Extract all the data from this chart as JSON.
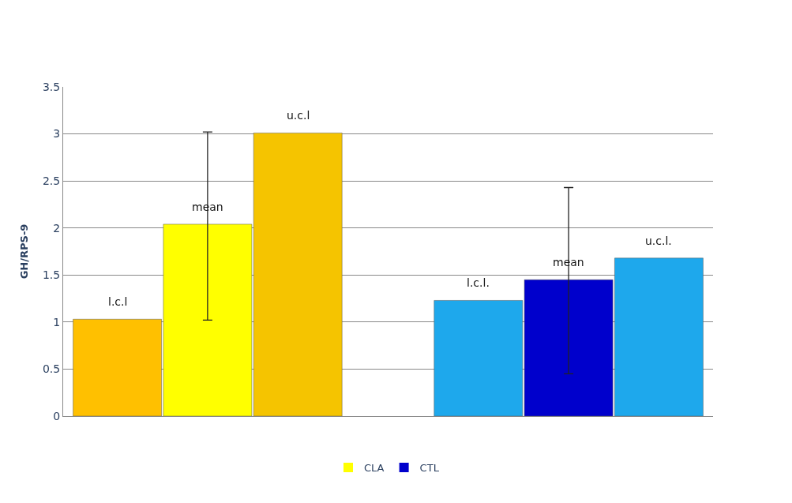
{
  "chart_data": {
    "type": "bar",
    "ylabel": "GH/RPS-9",
    "categories": [
      null,
      null,
      null,
      null,
      null,
      null
    ],
    "series": [
      {
        "name": "CLA",
        "color": "#ffff00",
        "colors": [
          "#ffc000",
          "#ffff00",
          "#f5c400",
          null,
          null,
          null
        ],
        "values": [
          1.03,
          2.04,
          3.01,
          null,
          null,
          null
        ],
        "errors": [
          null,
          [
            1.02,
            3.02
          ],
          null,
          null,
          null,
          null
        ]
      },
      {
        "name": "CTL",
        "color": "#0000cc",
        "colors": [
          null,
          null,
          null,
          "#1ea8ec",
          "#0000cc",
          "#1ea8ec"
        ],
        "values": [
          null,
          null,
          null,
          1.23,
          1.45,
          1.68
        ],
        "errors": [
          null,
          null,
          null,
          null,
          [
            0.45,
            2.43
          ],
          null
        ]
      }
    ],
    "annotations": [
      {
        "text": "l.c.l",
        "y": 1.03
      },
      {
        "text": "mean",
        "y": 2.04
      },
      {
        "text": "u.c.l",
        "y": 3.01
      },
      {
        "text": "l.c.l.",
        "y": 1.23
      },
      {
        "text": "mean",
        "y": 1.45
      },
      {
        "text": "u.c.l.",
        "y": 1.68
      }
    ],
    "ylim": [
      0,
      3.5
    ],
    "yticks": [
      0,
      0.5,
      1,
      1.5,
      2,
      2.5,
      3,
      3.5
    ],
    "grid": "y",
    "legend": "bottom"
  }
}
